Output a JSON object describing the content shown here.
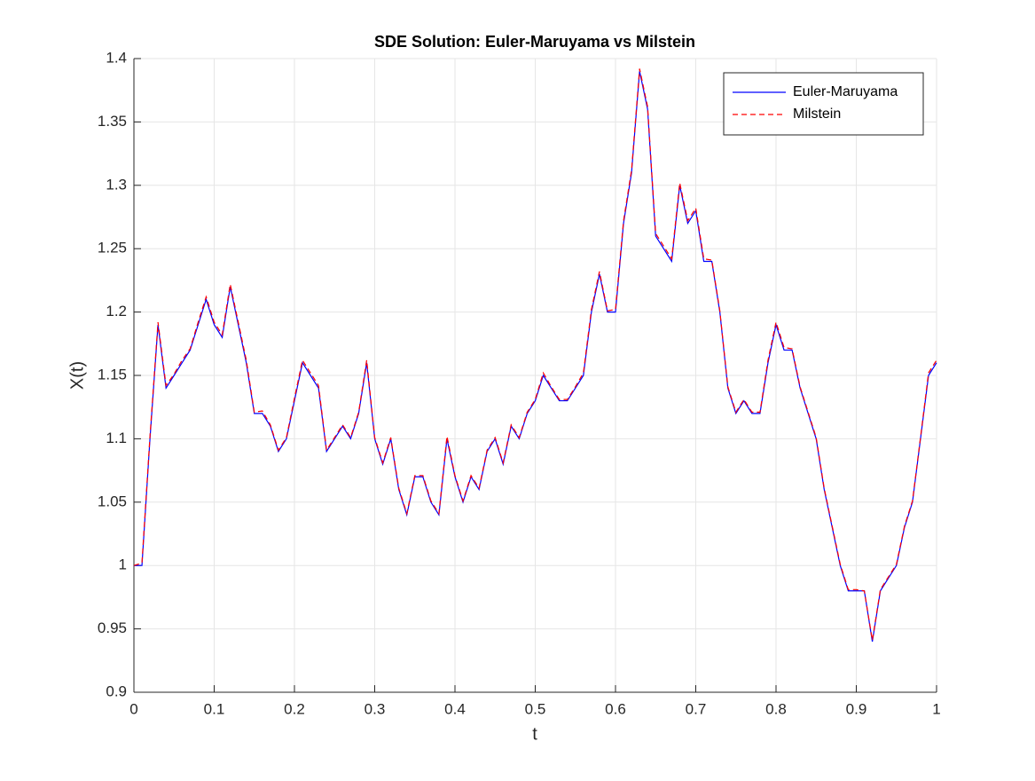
{
  "chart_data": {
    "type": "line",
    "title": "SDE Solution: Euler-Maruyama vs Milstein",
    "xlabel": "t",
    "ylabel": "X(t)",
    "x": [
      0,
      0.01,
      0.02,
      0.03,
      0.04,
      0.05,
      0.06,
      0.07,
      0.08,
      0.09,
      0.1,
      0.11,
      0.12,
      0.13,
      0.14,
      0.15,
      0.16,
      0.17,
      0.18,
      0.19,
      0.2,
      0.21,
      0.22,
      0.23,
      0.24,
      0.25,
      0.26,
      0.27,
      0.28,
      0.29,
      0.3,
      0.31,
      0.32,
      0.33,
      0.34,
      0.35,
      0.36,
      0.37,
      0.38,
      0.39,
      0.4,
      0.41,
      0.42,
      0.43,
      0.44,
      0.45,
      0.46,
      0.47,
      0.48,
      0.49,
      0.5,
      0.51,
      0.52,
      0.53,
      0.54,
      0.55,
      0.56,
      0.57,
      0.58,
      0.59,
      0.6,
      0.61,
      0.62,
      0.63,
      0.64,
      0.65,
      0.66,
      0.67,
      0.68,
      0.69,
      0.7,
      0.71,
      0.72,
      0.73,
      0.74,
      0.75,
      0.76,
      0.77,
      0.78,
      0.79,
      0.8,
      0.81,
      0.82,
      0.83,
      0.84,
      0.85,
      0.86,
      0.87,
      0.88,
      0.89,
      0.9,
      0.91,
      0.92,
      0.93,
      0.94,
      0.95,
      0.96,
      0.97,
      0.98,
      0.99,
      1
    ],
    "series": [
      {
        "name": "Euler-Maruyama",
        "color": "#0000ff",
        "dash": false,
        "values": [
          1.0,
          1.0,
          1.1,
          1.19,
          1.14,
          1.15,
          1.16,
          1.17,
          1.19,
          1.21,
          1.19,
          1.18,
          1.22,
          1.19,
          1.16,
          1.12,
          1.12,
          1.11,
          1.09,
          1.1,
          1.13,
          1.16,
          1.15,
          1.14,
          1.09,
          1.1,
          1.11,
          1.1,
          1.12,
          1.16,
          1.1,
          1.08,
          1.1,
          1.06,
          1.04,
          1.07,
          1.07,
          1.05,
          1.04,
          1.1,
          1.07,
          1.05,
          1.07,
          1.06,
          1.09,
          1.1,
          1.08,
          1.11,
          1.1,
          1.12,
          1.13,
          1.15,
          1.14,
          1.13,
          1.13,
          1.14,
          1.15,
          1.2,
          1.23,
          1.2,
          1.2,
          1.27,
          1.31,
          1.39,
          1.36,
          1.26,
          1.25,
          1.24,
          1.3,
          1.27,
          1.28,
          1.24,
          1.24,
          1.2,
          1.14,
          1.12,
          1.13,
          1.12,
          1.12,
          1.16,
          1.19,
          1.17,
          1.17,
          1.14,
          1.12,
          1.1,
          1.06,
          1.03,
          1.0,
          0.98,
          0.98,
          0.98,
          0.94,
          0.98,
          0.99,
          1.0,
          1.03,
          1.05,
          1.1,
          1.15,
          1.16
        ]
      },
      {
        "name": "Milstein",
        "color": "#ff0000",
        "dash": true,
        "values": [
          1.0,
          1.002,
          1.102,
          1.192,
          1.142,
          1.151,
          1.162,
          1.171,
          1.192,
          1.212,
          1.192,
          1.182,
          1.222,
          1.192,
          1.162,
          1.121,
          1.122,
          1.111,
          1.091,
          1.101,
          1.132,
          1.162,
          1.152,
          1.142,
          1.091,
          1.101,
          1.111,
          1.101,
          1.121,
          1.162,
          1.101,
          1.081,
          1.101,
          1.061,
          1.041,
          1.071,
          1.071,
          1.051,
          1.041,
          1.102,
          1.071,
          1.051,
          1.071,
          1.061,
          1.091,
          1.101,
          1.081,
          1.111,
          1.101,
          1.121,
          1.131,
          1.152,
          1.141,
          1.131,
          1.131,
          1.141,
          1.152,
          1.202,
          1.232,
          1.201,
          1.202,
          1.272,
          1.312,
          1.392,
          1.362,
          1.262,
          1.252,
          1.242,
          1.302,
          1.272,
          1.282,
          1.242,
          1.241,
          1.201,
          1.141,
          1.121,
          1.131,
          1.121,
          1.121,
          1.162,
          1.192,
          1.172,
          1.171,
          1.141,
          1.121,
          1.101,
          1.061,
          1.031,
          1.001,
          0.981,
          0.981,
          0.98,
          0.941,
          0.981,
          0.991,
          1.001,
          1.031,
          1.051,
          1.101,
          1.152,
          1.162
        ]
      }
    ],
    "xlim": [
      0,
      1
    ],
    "xticks": [
      0,
      0.1,
      0.2,
      0.3,
      0.4,
      0.5,
      0.6,
      0.7,
      0.8,
      0.9,
      1
    ],
    "ylim": [
      0.9,
      1.4
    ],
    "yticks": [
      0.9,
      0.95,
      1,
      1.05,
      1.1,
      1.15,
      1.2,
      1.25,
      1.3,
      1.35,
      1.4
    ],
    "grid": true,
    "legend": "top-right"
  }
}
